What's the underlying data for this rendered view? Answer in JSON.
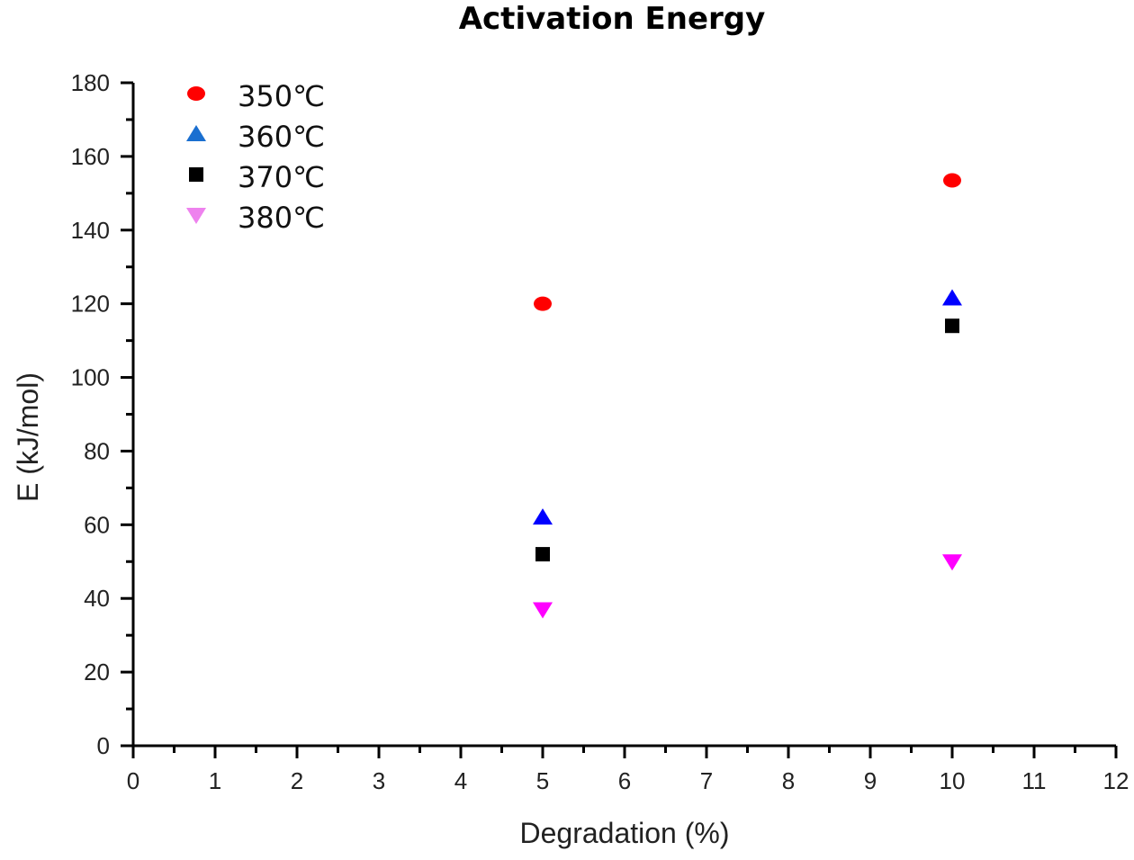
{
  "chart_data": {
    "type": "scatter",
    "title": "Activation Energy",
    "xlabel": "Degradation (%)",
    "ylabel": "E (kJ/mol)",
    "xlim": [
      0,
      12
    ],
    "ylim": [
      0,
      180
    ],
    "x_ticks": [
      "0",
      "1",
      "2",
      "3",
      "4",
      "5",
      "6",
      "7",
      "8",
      "9",
      "10",
      "11",
      "12"
    ],
    "y_ticks": [
      "0",
      "20",
      "40",
      "60",
      "80",
      "100",
      "120",
      "140",
      "160",
      "180"
    ],
    "grid": false,
    "legend_position": "top-left",
    "series": [
      {
        "name": "350℃",
        "marker": "circle",
        "color": "#ff0000",
        "legend_color": "#ff0000",
        "x": [
          5,
          10
        ],
        "y": [
          120,
          153.5
        ]
      },
      {
        "name": "360℃",
        "marker": "triangle-up",
        "color": "#0000ff",
        "legend_color": "#1a6fd0",
        "x": [
          5,
          10
        ],
        "y": [
          62,
          121.5
        ]
      },
      {
        "name": "370℃",
        "marker": "square",
        "color": "#000000",
        "legend_color": "#000000",
        "x": [
          5,
          10
        ],
        "y": [
          52,
          114
        ]
      },
      {
        "name": "380℃",
        "marker": "triangle-down",
        "color": "#ff00ff",
        "legend_color": "#ee82ee",
        "x": [
          5,
          10
        ],
        "y": [
          37,
          50
        ]
      }
    ]
  }
}
